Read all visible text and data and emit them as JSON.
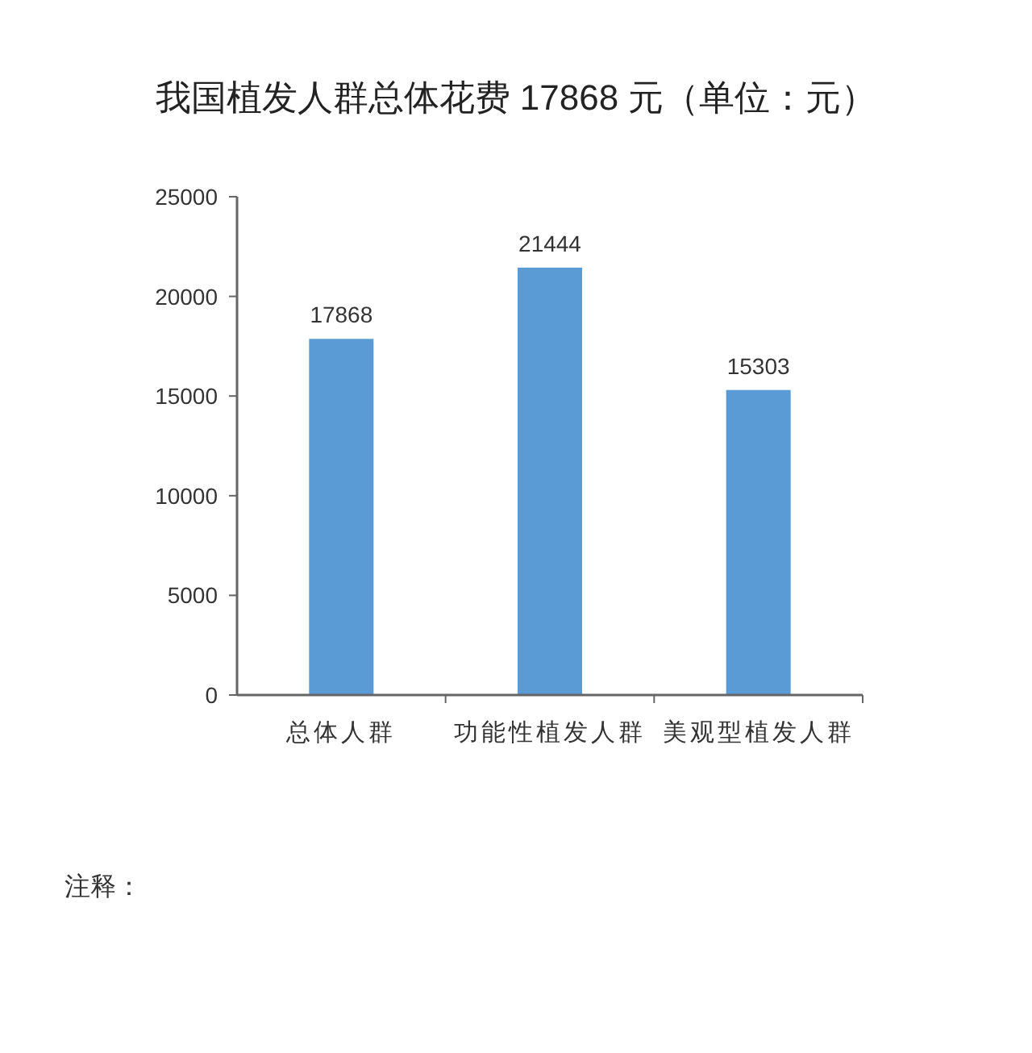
{
  "chart_data": {
    "type": "bar",
    "title": "我国植发人群总体花费 17868 元（单位：元）",
    "categories": [
      "总体人群",
      "功能性植发人群",
      "美观型植发人群"
    ],
    "values": [
      17868,
      21444,
      15303
    ],
    "color": "#5b9bd5",
    "ylim": [
      0,
      25000
    ],
    "yticks": [
      0,
      5000,
      10000,
      15000,
      20000,
      25000
    ],
    "data_labels": true,
    "annotations": [
      "注释："
    ]
  }
}
